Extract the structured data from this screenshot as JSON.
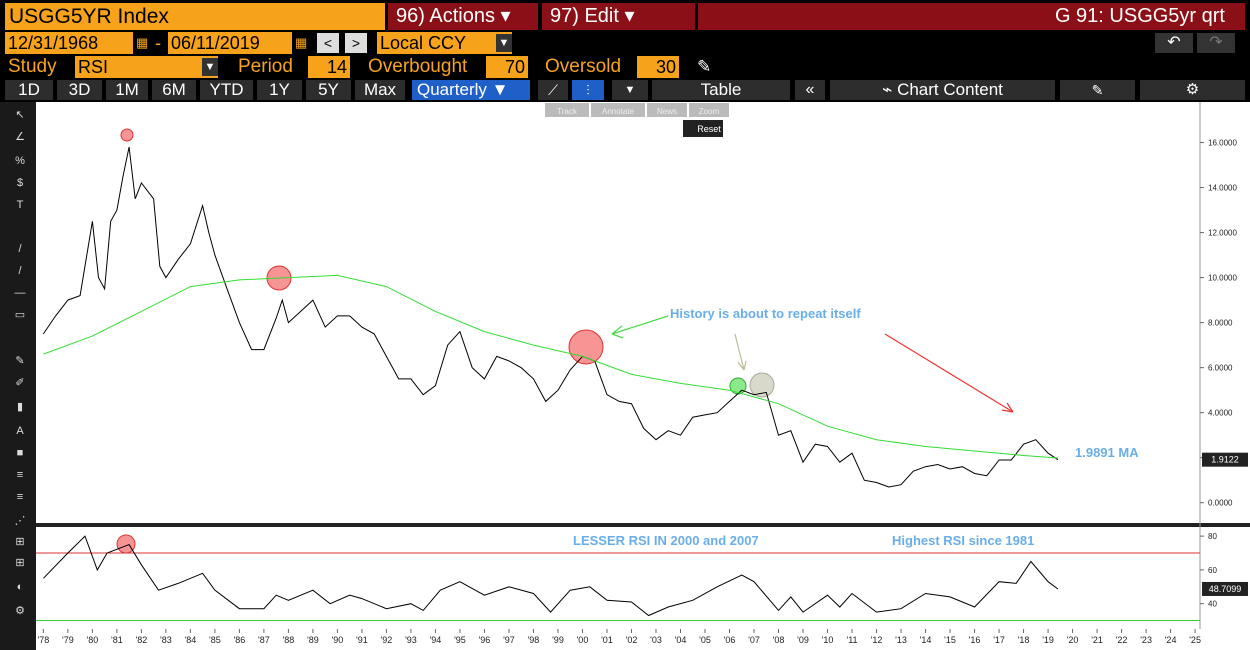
{
  "toolbar": {
    "ticker": "USGG5YR Index",
    "actions": "96) Actions",
    "edit": "97) Edit",
    "title": "G 91: USGG5yr qrt"
  },
  "dates": {
    "start": "12/31/1968",
    "separator": "-",
    "end": "06/11/2019",
    "currency": "Local CCY"
  },
  "study": {
    "label": "Study",
    "name": "RSI",
    "period_label": "Period",
    "period": 14,
    "overbought_label": "Overbought",
    "overbought": 70,
    "oversold_label": "Oversold",
    "oversold": 30
  },
  "ranges": [
    "1D",
    "3D",
    "1M",
    "6M",
    "YTD",
    "1Y",
    "5Y",
    "Max"
  ],
  "frequency": "Quarterly",
  "table": "Table",
  "chart_content": "Chart Content",
  "chart_tools": [
    "Track",
    "Annotate",
    "News",
    "Zoom"
  ],
  "reset": "Reset",
  "chart_data": [
    {
      "type": "line",
      "xlim": [
        1977.7,
        2025.2
      ],
      "ylim": [
        -0.9,
        17.8
      ],
      "yticks": [
        {
          "value": 0,
          "label": "0.0000"
        },
        {
          "value": 2,
          "label": "2.0000"
        },
        {
          "value": 4,
          "label": "4.0000"
        },
        {
          "value": 6,
          "label": "6.0000"
        },
        {
          "value": 8,
          "label": "8.0000"
        },
        {
          "value": 10,
          "label": "10.0000"
        },
        {
          "value": 12,
          "label": "12.0000"
        },
        {
          "value": 14,
          "label": "14.0000"
        },
        {
          "value": 16,
          "label": "16.0000"
        }
      ],
      "series": [
        {
          "color": "#000000",
          "x": [
            1978.0,
            1978.5,
            1979.0,
            1979.5,
            1980.0,
            1980.25,
            1980.5,
            1980.75,
            1981.0,
            1981.25,
            1981.5,
            1981.75,
            1982.0,
            1982.5,
            1982.75,
            1983.0,
            1983.5,
            1984.0,
            1984.5,
            1984.75,
            1985.0,
            1985.5,
            1986.0,
            1986.5,
            1987.0,
            1987.5,
            1987.75,
            1988.0,
            1988.5,
            1989.0,
            1989.5,
            1990.0,
            1990.5,
            1991.0,
            1991.5,
            1992.0,
            1992.5,
            1993.0,
            1993.5,
            1994.0,
            1994.5,
            1995.0,
            1995.5,
            1996.0,
            1996.5,
            1997.0,
            1997.5,
            1998.0,
            1998.5,
            1999.0,
            1999.5,
            2000.0,
            2000.5,
            2001.0,
            2001.5,
            2002.0,
            2002.5,
            2003.0,
            2003.5,
            2004.0,
            2004.5,
            2005.0,
            2005.5,
            2006.0,
            2006.5,
            2007.0,
            2007.5,
            2008.0,
            2008.5,
            2009.0,
            2009.5,
            2010.0,
            2010.5,
            2011.0,
            2011.5,
            2012.0,
            2012.5,
            2013.0,
            2013.5,
            2014.0,
            2014.5,
            2015.0,
            2015.5,
            2016.0,
            2016.5,
            2017.0,
            2017.5,
            2018.0,
            2018.5,
            2019.0,
            2019.4
          ],
          "values": [
            7.5,
            8.3,
            9.0,
            9.2,
            12.5,
            10.0,
            9.5,
            12.5,
            13.0,
            14.5,
            15.8,
            13.5,
            14.2,
            13.5,
            10.5,
            10.0,
            10.8,
            11.5,
            13.2,
            12.0,
            11.0,
            9.5,
            8.0,
            6.8,
            6.8,
            8.2,
            9.0,
            8.0,
            8.5,
            9.0,
            7.8,
            8.3,
            8.3,
            7.8,
            7.5,
            6.5,
            5.5,
            5.5,
            4.8,
            5.2,
            7.0,
            7.6,
            6.0,
            5.5,
            6.5,
            6.3,
            6.0,
            5.5,
            4.5,
            5.0,
            5.9,
            6.5,
            6.3,
            4.8,
            4.5,
            4.4,
            3.3,
            2.8,
            3.2,
            3.0,
            3.8,
            3.9,
            4.0,
            4.5,
            5.0,
            4.8,
            4.9,
            3.0,
            3.2,
            1.8,
            2.6,
            2.5,
            1.8,
            2.2,
            1.0,
            0.9,
            0.7,
            0.8,
            1.4,
            1.6,
            1.7,
            1.5,
            1.6,
            1.3,
            1.2,
            1.9,
            1.9,
            2.6,
            2.8,
            2.2,
            1.9122
          ]
        },
        {
          "color": "#33dd33",
          "label": "1.9891 MA",
          "x": [
            1978.0,
            1980.0,
            1982.0,
            1984.0,
            1986.0,
            1988.0,
            1990.0,
            1992.0,
            1994.0,
            1996.0,
            1998.0,
            2000.0,
            2002.0,
            2004.0,
            2006.0,
            2008.0,
            2010.0,
            2012.0,
            2014.0,
            2016.0,
            2018.0,
            2019.4
          ],
          "values": [
            6.6,
            7.4,
            8.5,
            9.6,
            9.9,
            10.0,
            10.1,
            9.6,
            8.5,
            7.6,
            7.0,
            6.5,
            5.7,
            5.3,
            5.0,
            4.4,
            3.4,
            2.8,
            2.5,
            2.3,
            2.1,
            1.9891
          ]
        }
      ],
      "last_value": 1.9122,
      "annotations": [
        "History is about to repeat itself"
      ]
    },
    {
      "type": "line",
      "xlim": [
        1977.7,
        2025.2
      ],
      "ylim": [
        25,
        85.4
      ],
      "yticks": [
        40,
        60,
        80
      ],
      "xticks": [
        {
          "value": 1978,
          "label": "'78"
        },
        {
          "value": 1979,
          "label": "'79"
        },
        {
          "value": 1980,
          "label": "'80"
        },
        {
          "value": 1981,
          "label": "'81"
        },
        {
          "value": 1982,
          "label": "'82"
        },
        {
          "value": 1983,
          "label": "'83"
        },
        {
          "value": 1984,
          "label": "'84"
        },
        {
          "value": 1985,
          "label": "'85"
        },
        {
          "value": 1986,
          "label": "'86"
        },
        {
          "value": 1987,
          "label": "'87"
        },
        {
          "value": 1988,
          "label": "'88"
        },
        {
          "value": 1989,
          "label": "'89"
        },
        {
          "value": 1990,
          "label": "'90"
        },
        {
          "value": 1991,
          "label": "'91"
        },
        {
          "value": 1992,
          "label": "'92"
        },
        {
          "value": 1993,
          "label": "'93"
        },
        {
          "value": 1994,
          "label": "'94"
        },
        {
          "value": 1995,
          "label": "'95"
        },
        {
          "value": 1996,
          "label": "'96"
        },
        {
          "value": 1997,
          "label": "'97"
        },
        {
          "value": 1998,
          "label": "'98"
        },
        {
          "value": 1999,
          "label": "'99"
        },
        {
          "value": 2000,
          "label": "'00"
        },
        {
          "value": 2001,
          "label": "'01"
        },
        {
          "value": 2002,
          "label": "'02"
        },
        {
          "value": 2003,
          "label": "'03"
        },
        {
          "value": 2004,
          "label": "'04"
        },
        {
          "value": 2005,
          "label": "'05"
        },
        {
          "value": 2006,
          "label": "'06"
        },
        {
          "value": 2007,
          "label": "'07"
        },
        {
          "value": 2008,
          "label": "'08"
        },
        {
          "value": 2009,
          "label": "'09"
        },
        {
          "value": 2010,
          "label": "'10"
        },
        {
          "value": 2011,
          "label": "'11"
        },
        {
          "value": 2012,
          "label": "'12"
        },
        {
          "value": 2013,
          "label": "'13"
        },
        {
          "value": 2014,
          "label": "'14"
        },
        {
          "value": 2015,
          "label": "'15"
        },
        {
          "value": 2016,
          "label": "'16"
        },
        {
          "value": 2017,
          "label": "'17"
        },
        {
          "value": 2018,
          "label": "'18"
        },
        {
          "value": 2019,
          "label": "'19"
        },
        {
          "value": 2020,
          "label": "'20"
        },
        {
          "value": 2021,
          "label": "'21"
        },
        {
          "value": 2022,
          "label": "'22"
        },
        {
          "value": 2023,
          "label": "'23"
        },
        {
          "value": 2024,
          "label": "'24"
        },
        {
          "value": 2025,
          "label": "'25"
        }
      ],
      "series": [
        {
          "color": "#000000",
          "x": [
            1978.0,
            1979.0,
            1979.7,
            1980.2,
            1980.6,
            1981.5,
            1982.0,
            1982.7,
            1983.5,
            1984.5,
            1985.0,
            1986.0,
            1987.0,
            1987.5,
            1988.0,
            1989.0,
            1989.7,
            1990.5,
            1991.0,
            1992.0,
            1993.0,
            1993.5,
            1994.2,
            1995.0,
            1996.0,
            1997.0,
            1998.0,
            1998.7,
            1999.5,
            2000.3,
            2001.0,
            2002.0,
            2002.7,
            2003.5,
            2004.5,
            2005.5,
            2006.5,
            2007.0,
            2008.0,
            2008.5,
            2009.0,
            2010.0,
            2010.5,
            2011.0,
            2012.0,
            2013.0,
            2014.0,
            2015.0,
            2016.0,
            2017.0,
            2017.7,
            2018.3,
            2019.0,
            2019.4
          ],
          "values": [
            55,
            70,
            80,
            60,
            70,
            75,
            63,
            48,
            52,
            58,
            48,
            37,
            37,
            45,
            42,
            48,
            40,
            45,
            43,
            37,
            40,
            36,
            48,
            53,
            45,
            50,
            46,
            35,
            48,
            50,
            42,
            41,
            33,
            38,
            42,
            50,
            57,
            53,
            36,
            44,
            35,
            45,
            38,
            46,
            35,
            37,
            46,
            44,
            38,
            53,
            52,
            65,
            53,
            48.7099
          ]
        }
      ],
      "last_value": 48.7099,
      "annotations": [
        "LESSER RSI IN 2000 and 2007",
        "Highest RSI since 1981"
      ]
    }
  ]
}
